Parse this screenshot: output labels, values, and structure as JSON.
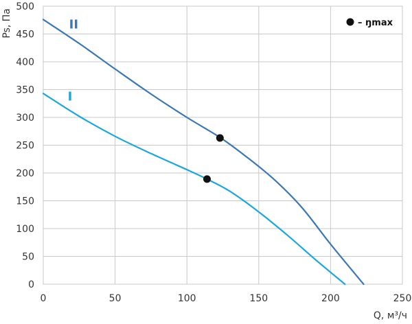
{
  "chart_data": {
    "type": "line",
    "xlabel": "Q, м³/ч",
    "ylabel": "Ps, Па",
    "xlim": [
      0,
      250
    ],
    "ylim": [
      0,
      500
    ],
    "xticks": [
      0,
      50,
      100,
      150,
      200,
      250
    ],
    "yticks": [
      0,
      50,
      100,
      150,
      200,
      250,
      300,
      350,
      400,
      450,
      500
    ],
    "grid": true,
    "legend": {
      "position": "top-right",
      "marker": "●",
      "text": "– ŋmax"
    },
    "series": [
      {
        "name": "II",
        "color": "#3a77b8",
        "points": [
          [
            0,
            476
          ],
          [
            25,
            433
          ],
          [
            50,
            387
          ],
          [
            75,
            342
          ],
          [
            100,
            300
          ],
          [
            123,
            264
          ],
          [
            140,
            232
          ],
          [
            160,
            190
          ],
          [
            180,
            138
          ],
          [
            200,
            72
          ],
          [
            223,
            0
          ]
        ],
        "eta_max": [
          123,
          263
        ],
        "label_position": [
          18,
          460
        ]
      },
      {
        "name": "I",
        "color": "#1aa7e0",
        "points": [
          [
            0,
            343
          ],
          [
            25,
            302
          ],
          [
            50,
            266
          ],
          [
            75,
            235
          ],
          [
            100,
            206
          ],
          [
            114,
            189
          ],
          [
            130,
            167
          ],
          [
            150,
            130
          ],
          [
            170,
            88
          ],
          [
            190,
            43
          ],
          [
            210,
            0
          ]
        ],
        "eta_max": [
          114,
          189
        ],
        "label_position": [
          17,
          330
        ]
      }
    ]
  }
}
